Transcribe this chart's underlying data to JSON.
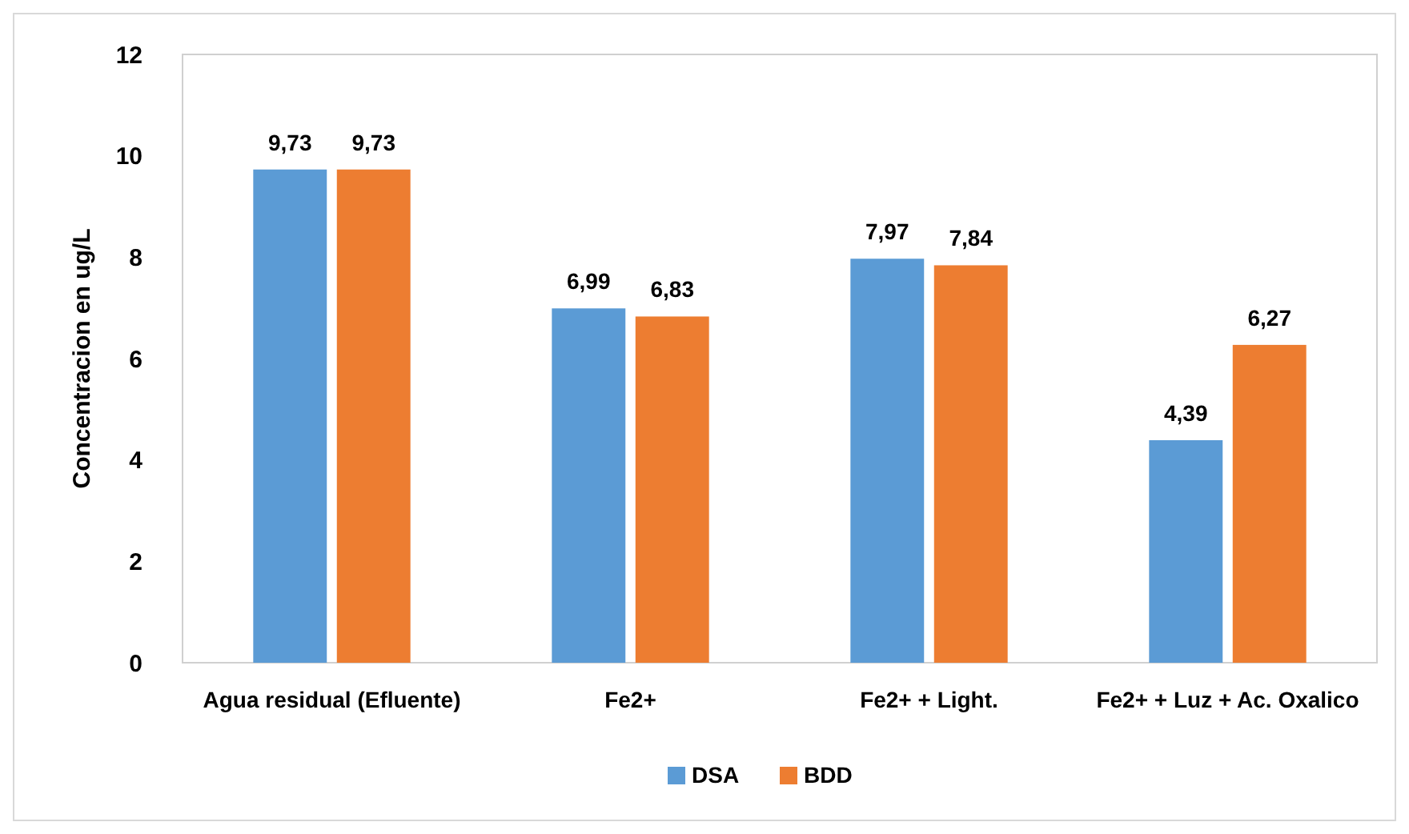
{
  "chart_data": {
    "type": "bar",
    "ylabel": "Concentracion  en ug/L",
    "categories": [
      "Agua residual (Efluente)",
      "Fe2+",
      "Fe2+ + Light.",
      "Fe2+ + Luz + Ac. Oxalico"
    ],
    "series": [
      {
        "name": "DSA",
        "color": "#5b9bd5",
        "values": [
          9.73,
          6.99,
          7.97,
          4.39
        ],
        "value_labels": [
          "9,73",
          "6,99",
          "7,97",
          "4,39"
        ]
      },
      {
        "name": "BDD",
        "color": "#ed7d31",
        "values": [
          9.73,
          6.83,
          7.84,
          6.27
        ],
        "value_labels": [
          "9,73",
          "6,83",
          "7,84",
          "6,27"
        ]
      }
    ],
    "ylim": [
      0,
      12
    ],
    "yticks": [
      0,
      2,
      4,
      6,
      8,
      10,
      12
    ],
    "grid": false,
    "legend": "bottom"
  }
}
